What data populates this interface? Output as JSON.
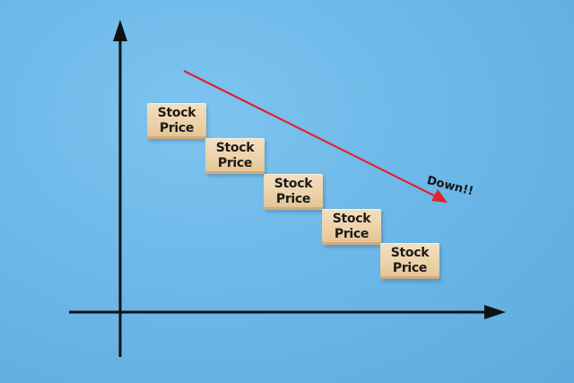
{
  "blocks": [
    {
      "line1": "Stock",
      "line2": "Price"
    },
    {
      "line1": "Stock",
      "line2": "Price"
    },
    {
      "line1": "Stock",
      "line2": "Price"
    },
    {
      "line1": "Stock",
      "line2": "Price"
    },
    {
      "line1": "Stock",
      "line2": "Price"
    }
  ],
  "trend_label": "Down!!",
  "colors": {
    "background": "#6cb8e8",
    "axes": "#111111",
    "trend_arrow": "#e0242c",
    "block_wood": "#ecd2aa"
  }
}
